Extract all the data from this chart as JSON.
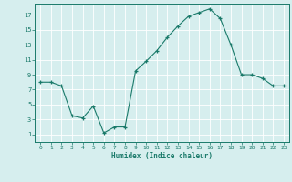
{
  "x": [
    0,
    1,
    2,
    3,
    4,
    5,
    6,
    7,
    8,
    9,
    10,
    11,
    12,
    13,
    14,
    15,
    16,
    17,
    18,
    19,
    20,
    21,
    22,
    23
  ],
  "y": [
    8,
    8,
    7.5,
    3.5,
    3.2,
    4.8,
    1.2,
    2.0,
    2.0,
    9.5,
    10.8,
    12.2,
    14.0,
    15.5,
    16.8,
    17.3,
    17.8,
    16.5,
    13.0,
    9.0,
    9.0,
    8.5,
    7.5,
    7.5
  ],
  "xlabel": "Humidex (Indice chaleur)",
  "xlim": [
    -0.5,
    23.5
  ],
  "ylim": [
    0,
    18.5
  ],
  "yticks": [
    1,
    3,
    5,
    7,
    9,
    11,
    13,
    15,
    17
  ],
  "xticks": [
    0,
    1,
    2,
    3,
    4,
    5,
    6,
    7,
    8,
    9,
    10,
    11,
    12,
    13,
    14,
    15,
    16,
    17,
    18,
    19,
    20,
    21,
    22,
    23
  ],
  "line_color": "#1a7a6a",
  "bg_color": "#d6eeee",
  "grid_color": "#ffffff",
  "tick_color": "#1a7a6a",
  "xlabel_color": "#1a7a6a"
}
